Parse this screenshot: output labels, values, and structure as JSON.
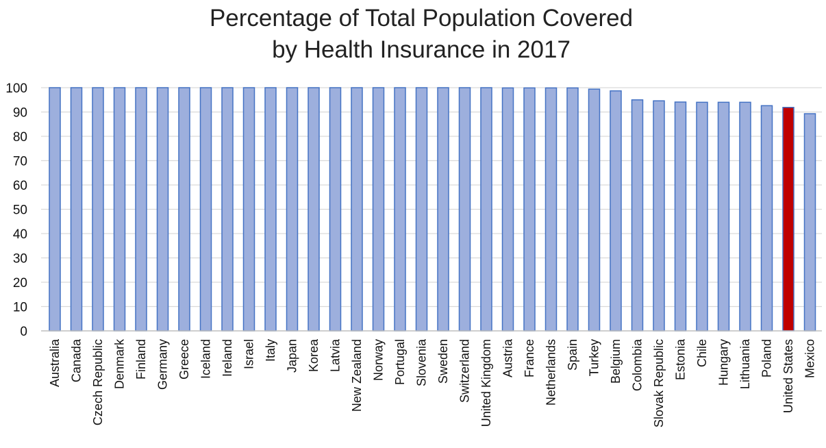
{
  "chart_data": {
    "type": "bar",
    "title_lines": [
      "Percentage of Total Population Covered",
      "by Health Insurance in 2017"
    ],
    "xlabel": "",
    "ylabel": "",
    "ylim": [
      0,
      100
    ],
    "yticks": [
      0,
      10,
      20,
      30,
      40,
      50,
      60,
      70,
      80,
      90,
      100
    ],
    "grid": true,
    "legend": "none",
    "categories": [
      "Australia",
      "Canada",
      "Czech Republic",
      "Denmark",
      "Finland",
      "Germany",
      "Greece",
      "Iceland",
      "Ireland",
      "Israel",
      "Italy",
      "Japan",
      "Korea",
      "Latvia",
      "New Zealand",
      "Norway",
      "Portugal",
      "Slovenia",
      "Sweden",
      "Switzerland",
      "United Kingdom",
      "Austria",
      "France",
      "Netherlands",
      "Spain",
      "Turkey",
      "Belgium",
      "Colombia",
      "Slovak Republic",
      "Estonia",
      "Chile",
      "Hungary",
      "Lithuania",
      "Poland",
      "United States",
      "Mexico"
    ],
    "values": [
      100,
      100,
      100,
      100,
      100,
      100,
      100,
      100,
      100,
      100,
      100,
      100,
      100,
      100,
      100,
      100,
      100,
      100,
      100,
      100,
      100,
      99.9,
      99.9,
      99.9,
      99.9,
      99.4,
      98.7,
      95.0,
      94.6,
      94.1,
      94.0,
      94.0,
      94.0,
      92.6,
      91.9,
      89.3
    ],
    "highlight_category": "United States",
    "colors": {
      "bar_fill": "#9dafdd",
      "bar_stroke": "#4472c4",
      "highlight_fill": "#c00000",
      "highlight_stroke": "#4472c4",
      "grid": "#d9d9d9"
    }
  }
}
